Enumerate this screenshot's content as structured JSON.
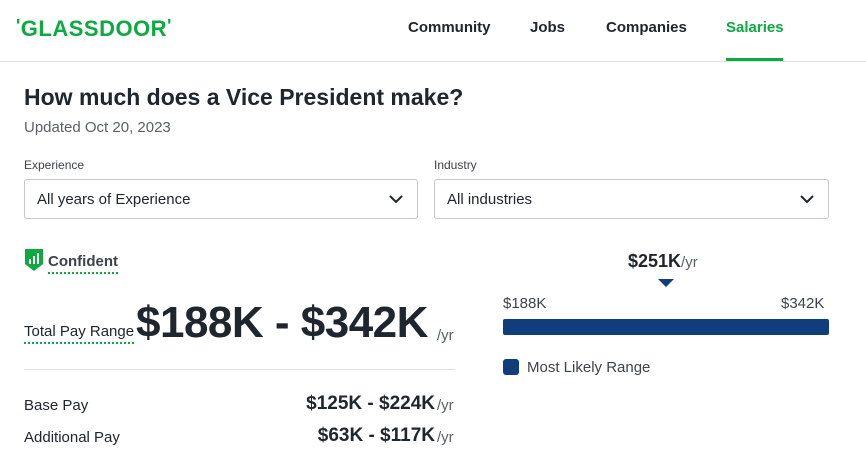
{
  "header": {
    "logo": "GLASSDOOR",
    "nav": [
      {
        "label": "Community"
      },
      {
        "label": "Jobs"
      },
      {
        "label": "Companies"
      },
      {
        "label": "Salaries",
        "active": true
      }
    ]
  },
  "page": {
    "title": "How much does a Vice President make?",
    "updated": "Updated Oct 20, 2023"
  },
  "filters": {
    "experience": {
      "label": "Experience",
      "value": "All years of Experience"
    },
    "industry": {
      "label": "Industry",
      "value": "All industries"
    }
  },
  "confidence": {
    "label": "Confident"
  },
  "total_pay": {
    "label": "Total Pay Range",
    "value": "$188K - $342K",
    "unit": "/yr"
  },
  "breakdown": [
    {
      "label": "Base Pay",
      "value": "$125K - $224K",
      "unit": "/yr"
    },
    {
      "label": "Additional Pay",
      "value": "$63K - $117K",
      "unit": "/yr"
    }
  ],
  "range_chart": {
    "median_value": "$251K",
    "median_unit": "/yr",
    "min_label": "$188K",
    "max_label": "$342K",
    "legend": "Most Likely Range",
    "color": "#103e7c"
  },
  "colors": {
    "brand": "#0caa41",
    "text": "#20262e"
  }
}
